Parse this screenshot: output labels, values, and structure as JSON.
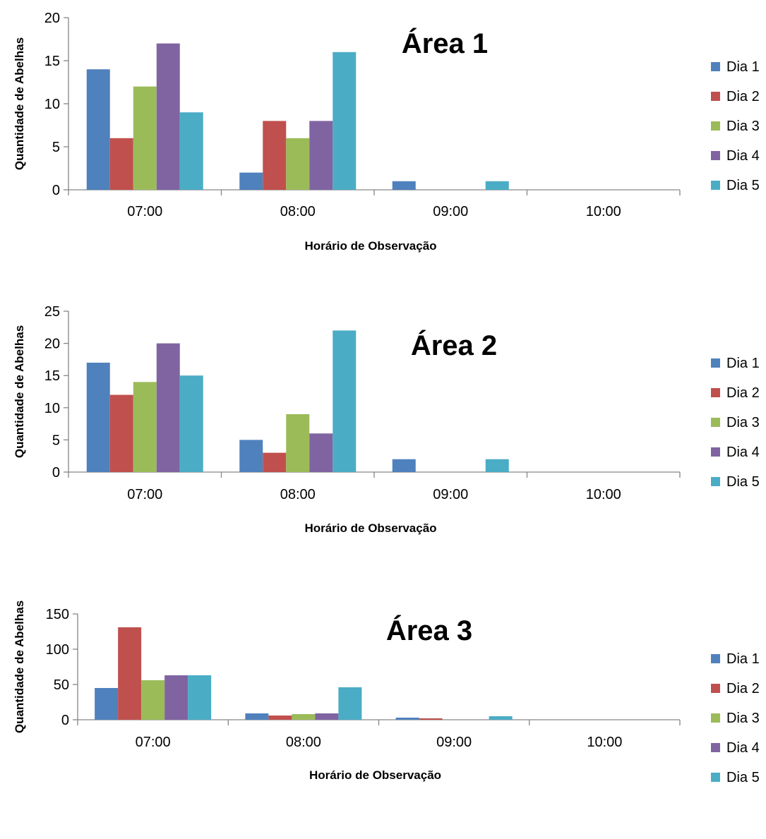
{
  "chart_data": [
    {
      "type": "bar",
      "title": "Área 1",
      "xlabel": "Horário de Observação",
      "ylabel": "Quantidade de Abelhas",
      "ylim": [
        0,
        20
      ],
      "yticks": [
        0,
        5,
        10,
        15,
        20
      ],
      "categories": [
        "07:00",
        "08:00",
        "09:00",
        "10:00"
      ],
      "legend_position": "right",
      "grid": false,
      "series": [
        {
          "name": "Dia 1",
          "color": "#4F81BD",
          "values": [
            14,
            2,
            1,
            0
          ]
        },
        {
          "name": "Dia 2",
          "color": "#C0504D",
          "values": [
            6,
            8,
            0,
            0
          ]
        },
        {
          "name": "Dia 3",
          "color": "#9BBB59",
          "values": [
            12,
            6,
            0,
            0
          ]
        },
        {
          "name": "Dia 4",
          "color": "#8064A2",
          "values": [
            17,
            8,
            0,
            0
          ]
        },
        {
          "name": "Dia 5",
          "color": "#4BACC6",
          "values": [
            9,
            16,
            1,
            0
          ]
        }
      ]
    },
    {
      "type": "bar",
      "title": "Área 2",
      "xlabel": "Horário de Observação",
      "ylabel": "Quantidade de Abelhas",
      "ylim": [
        0,
        25
      ],
      "yticks": [
        0,
        5,
        10,
        15,
        20,
        25
      ],
      "categories": [
        "07:00",
        "08:00",
        "09:00",
        "10:00"
      ],
      "legend_position": "right",
      "grid": false,
      "series": [
        {
          "name": "Dia 1",
          "color": "#4F81BD",
          "values": [
            17,
            5,
            2,
            0
          ]
        },
        {
          "name": "Dia 2",
          "color": "#C0504D",
          "values": [
            12,
            3,
            0,
            0
          ]
        },
        {
          "name": "Dia 3",
          "color": "#9BBB59",
          "values": [
            14,
            9,
            0,
            0
          ]
        },
        {
          "name": "Dia 4",
          "color": "#8064A2",
          "values": [
            20,
            6,
            0,
            0
          ]
        },
        {
          "name": "Dia 5",
          "color": "#4BACC6",
          "values": [
            15,
            22,
            2,
            0
          ]
        }
      ]
    },
    {
      "type": "bar",
      "title": "Área 3",
      "xlabel": "Horário de Observação",
      "ylabel": "Quantidade de Abelhas",
      "ylim": [
        0,
        150
      ],
      "yticks": [
        0,
        50,
        100,
        150
      ],
      "categories": [
        "07:00",
        "08:00",
        "09:00",
        "10:00"
      ],
      "legend_position": "right",
      "grid": false,
      "series": [
        {
          "name": "Dia 1",
          "color": "#4F81BD",
          "values": [
            45,
            9,
            3,
            0
          ]
        },
        {
          "name": "Dia 2",
          "color": "#C0504D",
          "values": [
            131,
            6,
            2,
            0
          ]
        },
        {
          "name": "Dia 3",
          "color": "#9BBB59",
          "values": [
            56,
            8,
            0,
            0
          ]
        },
        {
          "name": "Dia 4",
          "color": "#8064A2",
          "values": [
            63,
            9,
            0,
            0
          ]
        },
        {
          "name": "Dia 5",
          "color": "#4BACC6",
          "values": [
            63,
            46,
            5,
            0
          ]
        }
      ]
    }
  ]
}
